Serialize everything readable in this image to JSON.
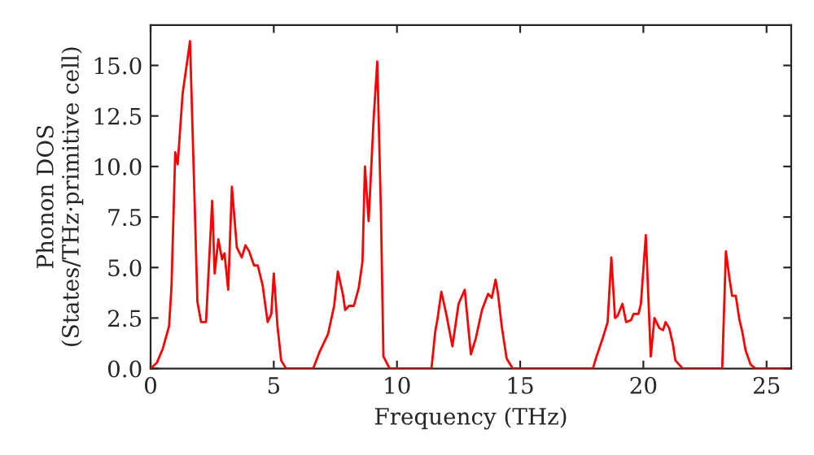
{
  "chart_data": {
    "type": "line",
    "xlabel": "Frequency (THz)",
    "ylabel": "Phonon DOS\n(States/THz·primitive cell)",
    "xlim": [
      0,
      26
    ],
    "ylim": [
      0,
      17
    ],
    "xticks": [
      0,
      5,
      10,
      15,
      20,
      25
    ],
    "yticks": [
      {
        "value": 0,
        "label": "0.0"
      },
      {
        "value": 2.5,
        "label": "2.5"
      },
      {
        "value": 5,
        "label": "5.0"
      },
      {
        "value": 7.5,
        "label": "7.5"
      },
      {
        "value": 10,
        "label": "10.0"
      },
      {
        "value": 12.5,
        "label": "12.5"
      },
      {
        "value": 15,
        "label": "15.0"
      }
    ],
    "grid": false,
    "legend": false,
    "marker": "none",
    "line_style": "solid",
    "series": [
      {
        "color": "#ff0000",
        "x": [
          0,
          0.26,
          0.5,
          0.75,
          0.85,
          1.0,
          1.1,
          1.3,
          1.6,
          1.8,
          1.9,
          2.05,
          2.25,
          2.5,
          2.6,
          2.75,
          2.9,
          3.0,
          3.15,
          3.3,
          3.5,
          3.7,
          3.85,
          4.0,
          4.2,
          4.35,
          4.55,
          4.75,
          4.9,
          5.0,
          5.15,
          5.3,
          5.5,
          6.6,
          6.85,
          7.2,
          7.45,
          7.6,
          7.8,
          7.9,
          8.05,
          8.25,
          8.45,
          8.6,
          8.7,
          8.85,
          9.05,
          9.2,
          9.35,
          9.45,
          9.7,
          11.4,
          11.55,
          11.65,
          11.8,
          12.0,
          12.25,
          12.5,
          12.75,
          13.0,
          13.2,
          13.45,
          13.7,
          13.85,
          14.0,
          14.1,
          14.25,
          14.45,
          14.7,
          17.95,
          18.1,
          18.35,
          18.55,
          18.7,
          18.85,
          18.95,
          19.15,
          19.3,
          19.5,
          19.6,
          19.8,
          19.9,
          20.1,
          20.3,
          20.45,
          20.65,
          20.8,
          20.9,
          21.05,
          21.2,
          21.3,
          21.6,
          23.2,
          23.35,
          23.5,
          23.6,
          23.75,
          23.9,
          24.0,
          24.15,
          24.35,
          24.55,
          25.9
        ],
        "values": [
          0,
          0.3,
          1.0,
          2.1,
          4.1,
          10.7,
          10.1,
          13.6,
          16.2,
          7.7,
          3.3,
          2.3,
          2.3,
          8.3,
          4.7,
          6.4,
          5.4,
          5.7,
          3.9,
          9.0,
          6.0,
          5.5,
          6.1,
          5.8,
          5.1,
          5.1,
          4.1,
          2.3,
          2.7,
          4.7,
          2.1,
          0.4,
          0,
          0,
          0.8,
          1.7,
          3.1,
          4.8,
          3.7,
          2.9,
          3.1,
          3.1,
          4.0,
          5.3,
          10.0,
          7.3,
          12.3,
          15.2,
          7.7,
          0.6,
          0,
          0,
          1.8,
          2.5,
          3.8,
          2.7,
          1.1,
          3.2,
          3.9,
          0.7,
          1.5,
          2.9,
          3.7,
          3.5,
          4.4,
          3.7,
          2.1,
          0.5,
          0,
          0,
          0.6,
          1.5,
          2.3,
          5.5,
          2.5,
          2.6,
          3.2,
          2.3,
          2.4,
          2.7,
          2.7,
          3.2,
          6.6,
          0.6,
          2.5,
          2.0,
          1.9,
          2.3,
          2.0,
          1.2,
          0.4,
          0,
          0,
          5.8,
          4.4,
          3.6,
          3.6,
          2.4,
          1.9,
          0.9,
          0.2,
          0,
          0
        ]
      }
    ]
  }
}
